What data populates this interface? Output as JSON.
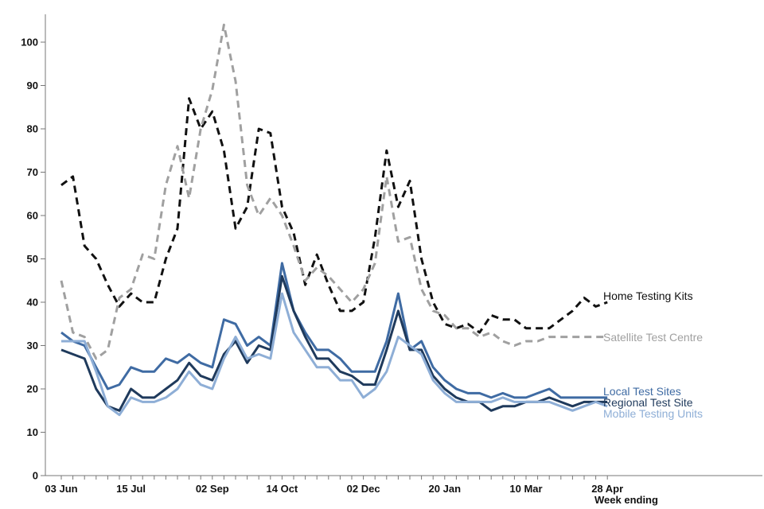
{
  "chart_data": {
    "type": "line",
    "title": "",
    "xlabel": "Week ending",
    "ylabel": "",
    "ylim": [
      0,
      105
    ],
    "yticks": [
      0,
      10,
      20,
      30,
      40,
      50,
      60,
      70,
      80,
      90,
      100
    ],
    "weeks_count": 48,
    "xtick_labels": [
      {
        "week_index": 0,
        "label": "03 Jun"
      },
      {
        "week_index": 6,
        "label": "15 Jul"
      },
      {
        "week_index": 13,
        "label": "02 Sep"
      },
      {
        "week_index": 19,
        "label": "14 Oct"
      },
      {
        "week_index": 26,
        "label": "02 Dec"
      },
      {
        "week_index": 33,
        "label": "20 Jan"
      },
      {
        "week_index": 40,
        "label": "10 Mar"
      },
      {
        "week_index": 47,
        "label": "28 Apr"
      }
    ],
    "series": [
      {
        "name": "Home Testing Kits",
        "color": "#111111",
        "dashed": true,
        "values": [
          67,
          69,
          53,
          50,
          44,
          39,
          42,
          40,
          40,
          50,
          57,
          87,
          80,
          84,
          75,
          57,
          62,
          80,
          79,
          62,
          56,
          44,
          51,
          44,
          38,
          38,
          40,
          55,
          75,
          62,
          68,
          50,
          40,
          35,
          34,
          35,
          33,
          37,
          36,
          36,
          34,
          34,
          34,
          36,
          38,
          41,
          39,
          40
        ]
      },
      {
        "name": "Satellite Test Centre",
        "color": "#a0a0a0",
        "dashed": true,
        "values": [
          45,
          33,
          32,
          27,
          29,
          41,
          43,
          51,
          50,
          67,
          76,
          64,
          80,
          89,
          104,
          91,
          67,
          60,
          64,
          60,
          53,
          45,
          48,
          46,
          43,
          40,
          43,
          49,
          69,
          54,
          55,
          43,
          38,
          37,
          34,
          34,
          32,
          33,
          31,
          30,
          31,
          31,
          32,
          32,
          32,
          32,
          32,
          32
        ]
      },
      {
        "name": "Local Test Sites",
        "color": "#3f6ba3",
        "dashed": false,
        "values": [
          33,
          31,
          30,
          25,
          20,
          21,
          25,
          24,
          24,
          27,
          26,
          28,
          26,
          25,
          36,
          35,
          30,
          32,
          30,
          49,
          38,
          33,
          29,
          29,
          27,
          24,
          24,
          24,
          31,
          42,
          29,
          31,
          25,
          22,
          20,
          19,
          19,
          18,
          19,
          18,
          18,
          19,
          20,
          18,
          18,
          18,
          18,
          18
        ]
      },
      {
        "name": "Regional Test Site",
        "color": "#1f3a5c",
        "dashed": false,
        "values": [
          29,
          28,
          27,
          20,
          16,
          15,
          20,
          18,
          18,
          20,
          22,
          26,
          23,
          22,
          28,
          31,
          26,
          30,
          29,
          46,
          38,
          32,
          27,
          27,
          24,
          23,
          21,
          21,
          29,
          38,
          29,
          29,
          23,
          20,
          18,
          17,
          17,
          15,
          16,
          16,
          17,
          17,
          18,
          17,
          16,
          17,
          17,
          17
        ]
      },
      {
        "name": "Mobile Testing Units",
        "color": "#8eaed6",
        "dashed": false,
        "values": [
          31,
          31,
          31,
          24,
          16,
          14,
          18,
          17,
          17,
          18,
          20,
          24,
          21,
          20,
          27,
          32,
          27,
          28,
          27,
          42,
          33,
          29,
          25,
          25,
          22,
          22,
          18,
          20,
          24,
          32,
          30,
          28,
          22,
          19,
          17,
          17,
          17,
          17,
          18,
          17,
          17,
          17,
          17,
          16,
          15,
          16,
          17,
          16
        ]
      }
    ]
  }
}
